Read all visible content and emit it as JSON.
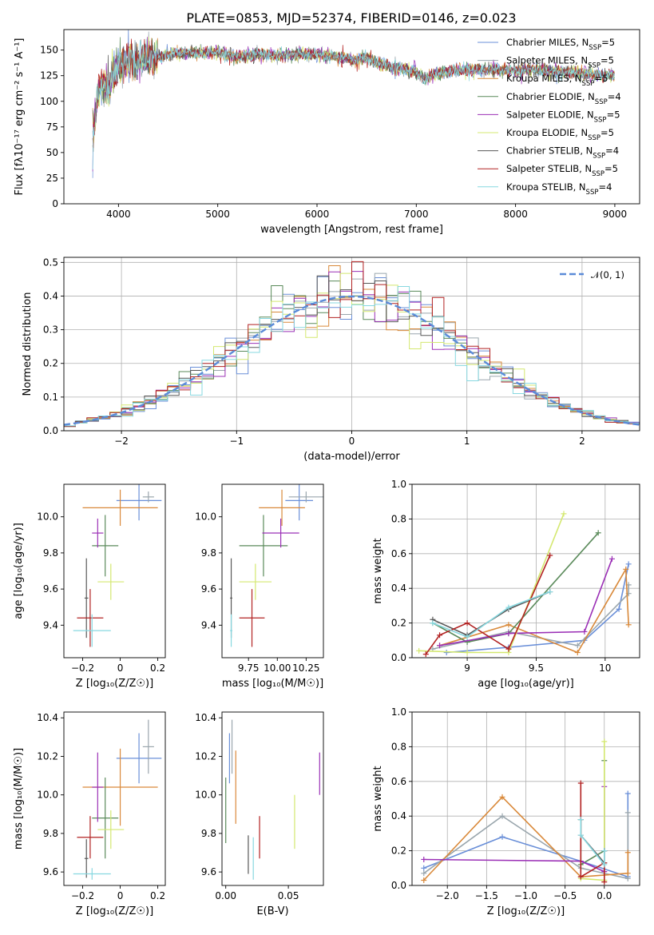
{
  "figure_title": "PLATE=0853, MJD=52374, FIBERID=0146, z=0.023",
  "colors": [
    "#6a8fd8",
    "#9aa6ad",
    "#d9893a",
    "#5a8a5a",
    "#9b30b6",
    "#d4e870",
    "#585858",
    "#b22222",
    "#87d8e0"
  ],
  "chart_data": [
    {
      "type": "line",
      "title": "PLATE=0853, MJD=52374, FIBERID=0146, z=0.023",
      "xlabel": "wavelength [Angstrom, rest frame]",
      "ylabel": "Flux [fλ10⁻¹⁷ erg cm⁻² s⁻¹ A⁻¹]",
      "xlim": [
        3450,
        9250
      ],
      "ylim": [
        0,
        170
      ],
      "xticks": [
        4000,
        5000,
        6000,
        7000,
        8000,
        9000
      ],
      "yticks": [
        0,
        25,
        50,
        75,
        100,
        125,
        150
      ],
      "legend_position": "upper-right",
      "spectrum_shape": [
        [
          3740,
          62
        ],
        [
          3800,
          112
        ],
        [
          3850,
          118
        ],
        [
          3900,
          108
        ],
        [
          3950,
          128
        ],
        [
          4000,
          133
        ],
        [
          4100,
          140
        ],
        [
          4200,
          138
        ],
        [
          4300,
          142
        ],
        [
          4400,
          143
        ],
        [
          4500,
          146
        ],
        [
          4600,
          147
        ],
        [
          4700,
          148
        ],
        [
          4800,
          147
        ],
        [
          5000,
          148
        ],
        [
          5200,
          143
        ],
        [
          5400,
          146
        ],
        [
          5600,
          145
        ],
        [
          5800,
          146
        ],
        [
          6000,
          146
        ],
        [
          6200,
          143
        ],
        [
          6400,
          140
        ],
        [
          6500,
          143
        ],
        [
          6600,
          137
        ],
        [
          6800,
          133
        ],
        [
          6900,
          131
        ],
        [
          7000,
          128
        ],
        [
          7100,
          123
        ],
        [
          7200,
          127
        ],
        [
          7400,
          130
        ],
        [
          7600,
          131
        ],
        [
          7800,
          131
        ],
        [
          8000,
          130
        ],
        [
          8200,
          131
        ],
        [
          8400,
          129
        ],
        [
          8600,
          128
        ],
        [
          8800,
          126
        ],
        [
          9000,
          125
        ]
      ],
      "series": [
        {
          "name": "Chabrier MILES, N",
          "sub": "SSP",
          "tail": "=5"
        },
        {
          "name": "Salpeter MILES, N",
          "sub": "SSP",
          "tail": "=5"
        },
        {
          "name": "Kroupa MILES, N",
          "sub": "SSP",
          "tail": "=5"
        },
        {
          "name": "Chabrier ELODIE, N",
          "sub": "SSP",
          "tail": "=4"
        },
        {
          "name": "Salpeter ELODIE, N",
          "sub": "SSP",
          "tail": "=5"
        },
        {
          "name": "Kroupa ELODIE, N",
          "sub": "SSP",
          "tail": "=5"
        },
        {
          "name": "Chabrier STELIB, N",
          "sub": "SSP",
          "tail": "=4"
        },
        {
          "name": "Salpeter STELIB, N",
          "sub": "SSP",
          "tail": "=5"
        },
        {
          "name": "Kroupa STELIB, N",
          "sub": "SSP",
          "tail": "=4"
        }
      ]
    },
    {
      "type": "histogram",
      "xlabel": "(data-model)/error",
      "ylabel": "Normed distribution",
      "xlim": [
        -2.5,
        2.5
      ],
      "ylim": [
        0,
        0.515
      ],
      "xticks": [
        -2,
        -1,
        0,
        1,
        2
      ],
      "yticks": [
        0.0,
        0.1,
        0.2,
        0.3,
        0.4,
        0.5
      ],
      "grid": true,
      "bin_width": 0.1,
      "reference_curve": {
        "name": "𝒩(0, 1)",
        "style": "dashed"
      },
      "legend_position": "upper-right"
    },
    {
      "type": "errorbar",
      "xlabel": "Z [log₁₀(Z/Z☉)]",
      "ylabel": "age  [log₁₀(age/yr)]",
      "xlim": [
        -0.3,
        0.24
      ],
      "ylim": [
        9.22,
        10.18
      ],
      "xticks": [
        -0.2,
        0.0,
        0.2
      ],
      "yticks": [
        9.4,
        9.6,
        9.8,
        10.0
      ],
      "points": [
        {
          "x": 0.1,
          "xerr": 0.12,
          "y": 10.09,
          "yerr": 0.11
        },
        {
          "x": 0.15,
          "xerr": 0.03,
          "y": 10.11,
          "yerr": 0.03
        },
        {
          "x": 0.0,
          "xerr": 0.2,
          "y": 10.05,
          "yerr": 0.1
        },
        {
          "x": -0.08,
          "xerr": 0.07,
          "y": 9.84,
          "yerr": 0.17
        },
        {
          "x": -0.12,
          "xerr": 0.03,
          "y": 9.91,
          "yerr": 0.08
        },
        {
          "x": -0.05,
          "xerr": 0.07,
          "y": 9.64,
          "yerr": 0.1
        },
        {
          "x": -0.18,
          "xerr": 0.01,
          "y": 9.55,
          "yerr": 0.22
        },
        {
          "x": -0.16,
          "xerr": 0.07,
          "y": 9.44,
          "yerr": 0.16
        },
        {
          "x": -0.15,
          "xerr": 0.1,
          "y": 9.37,
          "yerr": 0.09
        }
      ]
    },
    {
      "type": "errorbar",
      "xlabel": "mass [log₁₀(M/M☉)]",
      "ylabel": "",
      "xlim": [
        9.52,
        10.4
      ],
      "ylim": [
        9.22,
        10.18
      ],
      "xticks": [
        9.75,
        10.0,
        10.25
      ],
      "tick_labels": [
        "9.75",
        "10.00",
        "10.25"
      ],
      "yticks": [
        9.4,
        9.6,
        9.8,
        10.0
      ],
      "points": [
        {
          "x": 10.19,
          "xerr": 0.12,
          "y": 10.09,
          "yerr": 0.11
        },
        {
          "x": 10.25,
          "xerr": 0.15,
          "y": 10.11,
          "yerr": 0.03
        },
        {
          "x": 10.04,
          "xerr": 0.2,
          "y": 10.05,
          "yerr": 0.1
        },
        {
          "x": 9.88,
          "xerr": 0.21,
          "y": 9.84,
          "yerr": 0.17
        },
        {
          "x": 10.03,
          "xerr": 0.16,
          "y": 9.91,
          "yerr": 0.08
        },
        {
          "x": 9.81,
          "xerr": 0.14,
          "y": 9.64,
          "yerr": 0.1
        },
        {
          "x": 9.6,
          "xerr": 0.01,
          "y": 9.55,
          "yerr": 0.22
        },
        {
          "x": 9.78,
          "xerr": 0.11,
          "y": 9.44,
          "yerr": 0.16
        },
        {
          "x": 9.6,
          "xerr": 0.01,
          "y": 9.37,
          "yerr": 0.09
        }
      ]
    },
    {
      "type": "line",
      "xlabel": "age  [log₁₀(age/yr)]",
      "ylabel": "mass weight",
      "xlim": [
        8.6,
        10.25
      ],
      "ylim": [
        0,
        1.0
      ],
      "xticks": [
        9.0,
        9.5,
        10.0
      ],
      "yticks": [
        0.0,
        0.2,
        0.4,
        0.6,
        0.8,
        1.0
      ],
      "grid": true,
      "series": [
        {
          "x": [
            8.85,
            9.3,
            9.85,
            10.1,
            10.17
          ],
          "y": [
            0.03,
            0.06,
            0.1,
            0.28,
            0.54
          ]
        },
        {
          "x": [
            8.75,
            9.3,
            9.8,
            10.17,
            10.17
          ],
          "y": [
            0.05,
            0.15,
            0.07,
            0.37,
            0.42
          ]
        },
        {
          "x": [
            8.8,
            9.3,
            9.8,
            10.15,
            10.17
          ],
          "y": [
            0.07,
            0.19,
            0.03,
            0.51,
            0.19
          ]
        },
        {
          "x": [
            8.75,
            9.0,
            9.3,
            9.95
          ],
          "y": [
            0.2,
            0.09,
            0.14,
            0.72
          ]
        },
        {
          "x": [
            8.8,
            9.3,
            9.85,
            10.05
          ],
          "y": [
            0.07,
            0.14,
            0.15,
            0.57
          ]
        },
        {
          "x": [
            8.65,
            9.0,
            9.3,
            9.7
          ],
          "y": [
            0.04,
            0.03,
            0.03,
            0.83
          ]
        },
        {
          "x": [
            8.75,
            9.0,
            9.3,
            9.6
          ],
          "y": [
            0.22,
            0.13,
            0.28,
            0.38
          ]
        },
        {
          "x": [
            8.7,
            8.8,
            9.0,
            9.3,
            9.6
          ],
          "y": [
            0.02,
            0.13,
            0.2,
            0.05,
            0.59
          ]
        },
        {
          "x": [
            8.75,
            9.0,
            9.3,
            9.6
          ],
          "y": [
            0.2,
            0.12,
            0.29,
            0.38
          ]
        }
      ]
    },
    {
      "type": "errorbar",
      "xlabel": "Z [log₁₀(Z/Z☉)]",
      "ylabel": "mass [log₁₀(M/M☉)]",
      "xlim": [
        -0.3,
        0.24
      ],
      "ylim": [
        9.53,
        10.43
      ],
      "xticks": [
        -0.2,
        0.0,
        0.2
      ],
      "yticks": [
        9.6,
        9.8,
        10.0,
        10.2,
        10.4
      ],
      "points": [
        {
          "x": 0.1,
          "xerr": 0.12,
          "y": 10.19,
          "yerr": 0.13
        },
        {
          "x": 0.15,
          "xerr": 0.03,
          "y": 10.25,
          "yerr": 0.14
        },
        {
          "x": 0.0,
          "xerr": 0.2,
          "y": 10.04,
          "yerr": 0.2
        },
        {
          "x": -0.08,
          "xerr": 0.07,
          "y": 9.88,
          "yerr": 0.21
        },
        {
          "x": -0.12,
          "xerr": 0.03,
          "y": 10.04,
          "yerr": 0.18
        },
        {
          "x": -0.05,
          "xerr": 0.07,
          "y": 9.82,
          "yerr": 0.1
        },
        {
          "x": -0.18,
          "xerr": 0.01,
          "y": 9.67,
          "yerr": 0.1
        },
        {
          "x": -0.16,
          "xerr": 0.07,
          "y": 9.78,
          "yerr": 0.11
        },
        {
          "x": -0.15,
          "xerr": 0.1,
          "y": 9.59,
          "yerr": 0.03
        }
      ]
    },
    {
      "type": "errorbar",
      "xlabel": "E(B-V)",
      "ylabel": "",
      "xlim": [
        -0.003,
        0.078
      ],
      "ylim": [
        9.53,
        10.43
      ],
      "xticks": [
        0.0,
        0.05
      ],
      "tick_labels": [
        "0.00",
        "0.05"
      ],
      "yticks": [
        9.6,
        9.8,
        10.0,
        10.2,
        10.4
      ],
      "points": [
        {
          "x": 0.003,
          "y": 10.19,
          "yerr": 0.13
        },
        {
          "x": 0.005,
          "y": 10.25,
          "yerr": 0.14
        },
        {
          "x": 0.008,
          "y": 10.04,
          "yerr": 0.19
        },
        {
          "x": 0.0,
          "y": 9.92,
          "yerr": 0.17
        },
        {
          "x": 0.075,
          "y": 10.11,
          "yerr": 0.11
        },
        {
          "x": 0.055,
          "y": 9.86,
          "yerr": 0.14
        },
        {
          "x": 0.018,
          "y": 9.69,
          "yerr": 0.1
        },
        {
          "x": 0.027,
          "y": 9.78,
          "yerr": 0.11
        },
        {
          "x": 0.022,
          "y": 9.67,
          "yerr": 0.11
        }
      ]
    },
    {
      "type": "line",
      "xlabel": "Z [log₁₀(Z/Z☉)]",
      "ylabel": "mass weight",
      "xlim": [
        -2.45,
        0.45
      ],
      "ylim": [
        0,
        1.0
      ],
      "xticks": [
        -2.0,
        -1.5,
        -1.0,
        -0.5,
        0.0
      ],
      "tick_labels": [
        "−2.0",
        "−1.5",
        "−1.0",
        "−0.5",
        "0.0"
      ],
      "yticks": [
        0.0,
        0.2,
        0.4,
        0.6,
        0.8,
        1.0
      ],
      "grid": true,
      "series": [
        {
          "x": [
            -2.3,
            -1.3,
            -0.3,
            0.3,
            0.3
          ],
          "y": [
            0.1,
            0.28,
            0.14,
            0.05,
            0.53
          ]
        },
        {
          "x": [
            -2.3,
            -1.3,
            -0.3,
            0.3,
            0.3
          ],
          "y": [
            0.07,
            0.4,
            0.1,
            0.04,
            0.42
          ]
        },
        {
          "x": [
            -2.3,
            -1.3,
            -0.3,
            0.3,
            0.3
          ],
          "y": [
            0.03,
            0.51,
            0.05,
            0.07,
            0.19
          ]
        },
        {
          "x": [
            -0.3,
            -0.3,
            0.0,
            0.0
          ],
          "y": [
            0.38,
            0.12,
            0.2,
            0.72
          ]
        },
        {
          "x": [
            -2.3,
            -0.3,
            0.0,
            0.0
          ],
          "y": [
            0.15,
            0.14,
            0.08,
            0.57
          ]
        },
        {
          "x": [
            -0.3,
            0.0,
            0.0,
            0.0
          ],
          "y": [
            0.04,
            0.03,
            0.03,
            0.83
          ]
        },
        {
          "x": [
            -0.3,
            -0.3,
            0.0,
            0.0
          ],
          "y": [
            0.38,
            0.29,
            0.13,
            0.2
          ]
        },
        {
          "x": [
            -0.3,
            -0.3,
            0.0,
            0.0
          ],
          "y": [
            0.59,
            0.05,
            0.13,
            0.02
          ]
        },
        {
          "x": [
            -0.3,
            -0.3,
            0.0,
            0.0
          ],
          "y": [
            0.38,
            0.29,
            0.12,
            0.2
          ]
        }
      ]
    }
  ]
}
